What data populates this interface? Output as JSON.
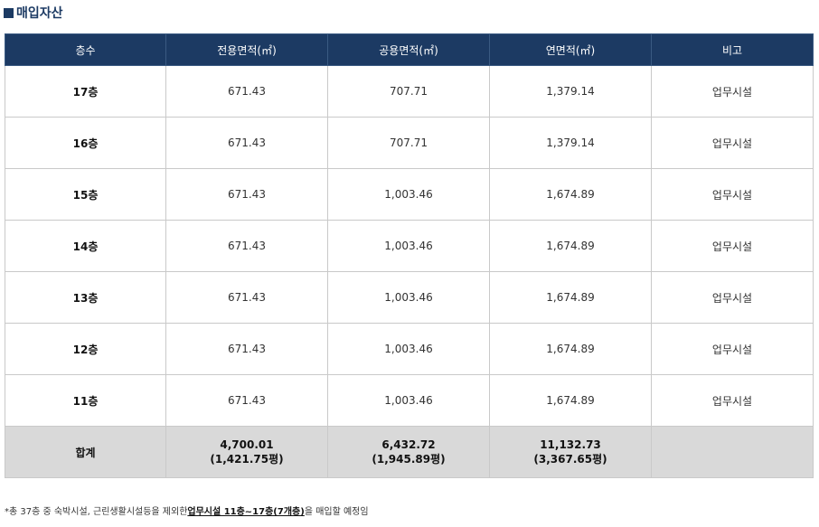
{
  "title": "매입자산",
  "columns": [
    "층수",
    "전용면적(㎡)",
    "공용면적(㎡)",
    "연면적(㎡)",
    "비고"
  ],
  "rows": [
    {
      "floor": "17층",
      "exclusive": "671.43",
      "common": "707.71",
      "gross": "1,379.14",
      "note": "업무시설"
    },
    {
      "floor": "16층",
      "exclusive": "671.43",
      "common": "707.71",
      "gross": "1,379.14",
      "note": "업무시설"
    },
    {
      "floor": "15층",
      "exclusive": "671.43",
      "common": "1,003.46",
      "gross": "1,674.89",
      "note": "업무시설"
    },
    {
      "floor": "14층",
      "exclusive": "671.43",
      "common": "1,003.46",
      "gross": "1,674.89",
      "note": "업무시설"
    },
    {
      "floor": "13층",
      "exclusive": "671.43",
      "common": "1,003.46",
      "gross": "1,674.89",
      "note": "업무시설"
    },
    {
      "floor": "12층",
      "exclusive": "671.43",
      "common": "1,003.46",
      "gross": "1,674.89",
      "note": "업무시설"
    },
    {
      "floor": "11층",
      "exclusive": "671.43",
      "common": "1,003.46",
      "gross": "1,674.89",
      "note": "업무시설"
    }
  ],
  "total": {
    "label": "합계",
    "exclusive": "4,700.01",
    "exclusive_pyeong": "(1,421.75평)",
    "common": "6,432.72",
    "common_pyeong": "(1,945.89평)",
    "gross": "11,132.73",
    "gross_pyeong": "(3,367.65평)",
    "note": ""
  },
  "footnote": {
    "prefix": "*총 37층 중 숙박시설, 근린생활시설등을 제외한",
    "highlight": "업무시설 11층~17층(7개층)",
    "suffix": "을 매입할 예정임"
  },
  "colors": {
    "header_bg": "#1c3a63",
    "total_bg": "#d9d9d9",
    "border": "#c9c9c9"
  }
}
